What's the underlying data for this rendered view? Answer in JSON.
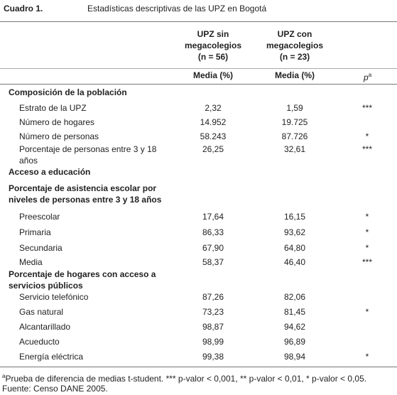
{
  "header": {
    "label": "Cuadro 1.",
    "title": "Estadísticas descriptivas de las UPZ en Bogotá"
  },
  "columns": [
    {
      "lines": [
        "UPZ sin",
        "megacolegios"
      ],
      "n": "(n = 56)",
      "unit": "Media (%)"
    },
    {
      "lines": [
        "UPZ con",
        "megacolegios"
      ],
      "n": "(n = 23)",
      "unit": "Media (%)"
    }
  ],
  "p_header": {
    "symbol": "p",
    "sup": "a"
  },
  "rows": [
    {
      "kind": "section",
      "label": [
        "Composición de la población"
      ]
    },
    {
      "kind": "item",
      "label": [
        "Estrato de la UPZ"
      ],
      "values": [
        "2,32",
        "1,59"
      ],
      "p": "***"
    },
    {
      "kind": "item",
      "label": [
        "Número de hogares"
      ],
      "values": [
        "14.952",
        "19.725"
      ]
    },
    {
      "kind": "item",
      "label": [
        "Número de personas"
      ],
      "values": [
        "58.243",
        "87.726"
      ],
      "p": "*"
    },
    {
      "kind": "item",
      "label": [
        "Porcentaje de personas entre 3 y 18",
        "años"
      ],
      "values": [
        "26,25",
        "32,61"
      ],
      "p": "***"
    },
    {
      "kind": "section",
      "label": [
        "Acceso a educación"
      ]
    },
    {
      "kind": "section",
      "label": [
        "Porcentaje de asistencia escolar por",
        "niveles de personas entre 3 y 18 años"
      ]
    },
    {
      "kind": "item",
      "label": [
        "Preescolar"
      ],
      "values": [
        "17,64",
        "16,15"
      ],
      "p": "*"
    },
    {
      "kind": "item",
      "label": [
        "Primaria"
      ],
      "values": [
        "86,33",
        "93,62"
      ],
      "p": "*"
    },
    {
      "kind": "item",
      "label": [
        "Secundaria"
      ],
      "values": [
        "67,90",
        "64,80"
      ],
      "p": "*"
    },
    {
      "kind": "item",
      "label": [
        "Media"
      ],
      "values": [
        "58,37",
        "46,40"
      ],
      "p": "***"
    },
    {
      "kind": "section",
      "label": [
        "Porcentaje de hogares con acceso a",
        "servicios públicos"
      ]
    },
    {
      "kind": "item",
      "label": [
        "Servicio telefónico"
      ],
      "values": [
        "87,26",
        "82,06"
      ]
    },
    {
      "kind": "item",
      "label": [
        "Gas natural"
      ],
      "values": [
        "73,23",
        "81,45"
      ],
      "p": "*"
    },
    {
      "kind": "item",
      "label": [
        "Alcantarillado"
      ],
      "values": [
        "98,87",
        "94,62"
      ]
    },
    {
      "kind": "item",
      "label": [
        "Acueducto"
      ],
      "values": [
        "98,99",
        "96,89"
      ]
    },
    {
      "kind": "item",
      "label": [
        "Energía eléctrica"
      ],
      "values": [
        "99,38",
        "98,94"
      ],
      "p": "*"
    }
  ],
  "footnote": {
    "mark": "a",
    "text": "Prueba de diferencia de medias t-student. *** p-valor < 0,001, ** p-valor < 0,01, * p-valor < 0,05."
  },
  "source": "Fuente: Censo DANE 2005."
}
